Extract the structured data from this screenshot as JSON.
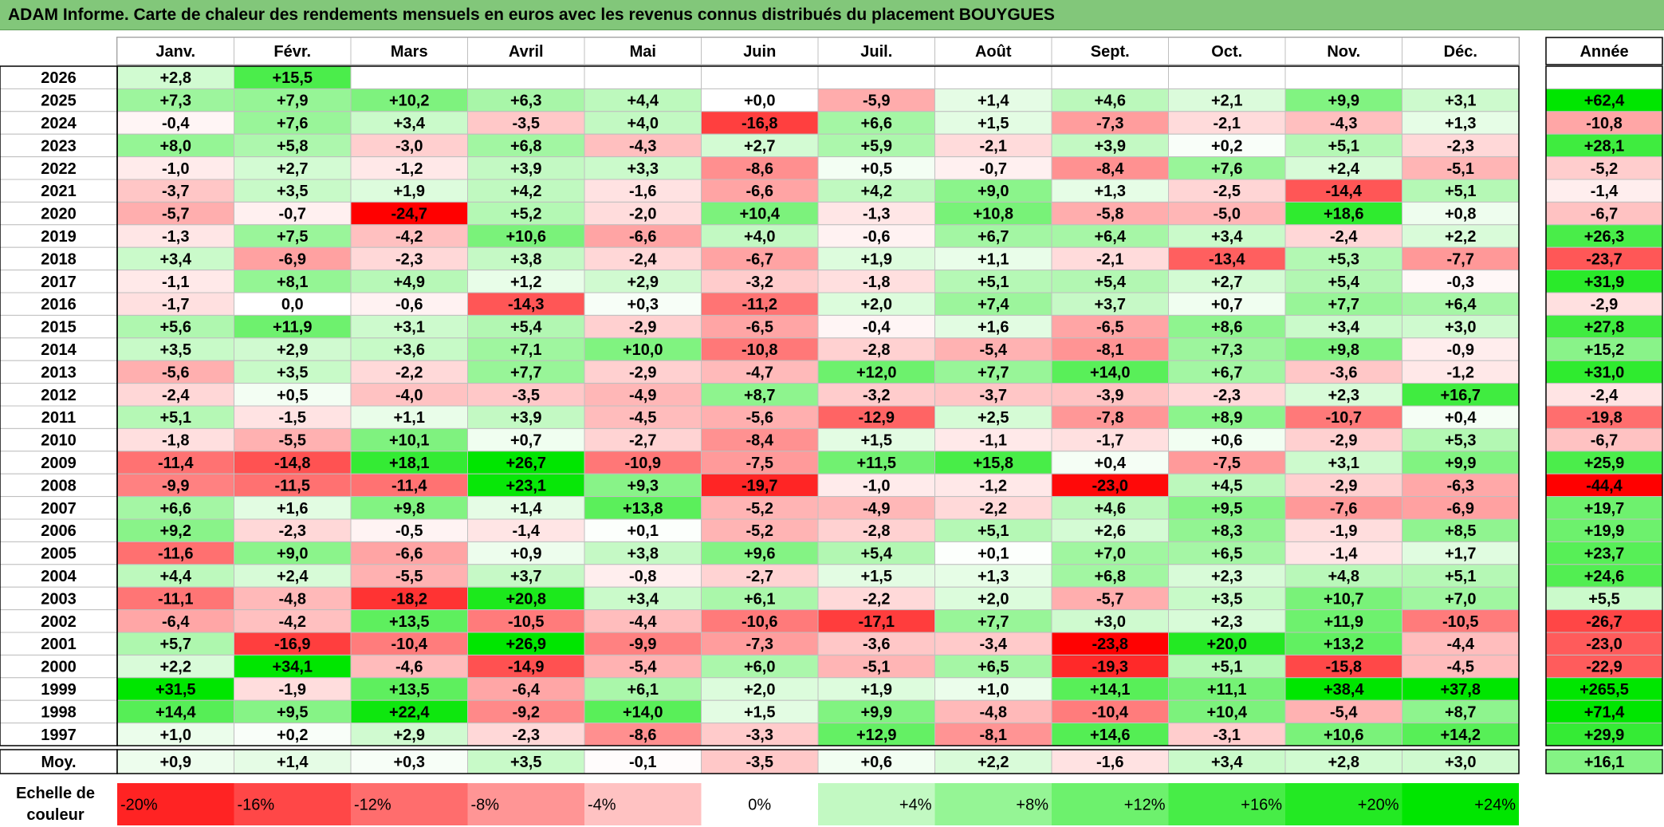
{
  "title": "ADAM Informe. Carte de chaleur des rendements mensuels en euros avec les revenus connus distribués du placement BOUYGUES",
  "chart_data": {
    "type": "heatmap",
    "months": [
      "Janv.",
      "Févr.",
      "Mars",
      "Avril",
      "Mai",
      "Juin",
      "Juil.",
      "Août",
      "Sept.",
      "Oct.",
      "Nov.",
      "Déc."
    ],
    "year_column_label": "Année",
    "rows": [
      {
        "year": "2026",
        "values": [
          "+2,8",
          "+15,5",
          "",
          "",
          "",
          "",
          "",
          "",
          "",
          "",
          "",
          ""
        ],
        "annual": ""
      },
      {
        "year": "2025",
        "values": [
          "+7,3",
          "+7,9",
          "+10,2",
          "+6,3",
          "+4,4",
          "+0,0",
          "-5,9",
          "+1,4",
          "+4,6",
          "+2,1",
          "+9,9",
          "+3,1"
        ],
        "annual": "+62,4"
      },
      {
        "year": "2024",
        "values": [
          "-0,4",
          "+7,6",
          "+3,4",
          "-3,5",
          "+4,0",
          "-16,8",
          "+6,6",
          "+1,5",
          "-7,3",
          "-2,1",
          "-4,3",
          "+1,3"
        ],
        "annual": "-10,8"
      },
      {
        "year": "2023",
        "values": [
          "+8,0",
          "+5,8",
          "-3,0",
          "+6,8",
          "-4,3",
          "+2,7",
          "+5,9",
          "-2,1",
          "+3,9",
          "+0,2",
          "+5,1",
          "-2,3"
        ],
        "annual": "+28,1"
      },
      {
        "year": "2022",
        "values": [
          "-1,0",
          "+2,7",
          "-1,2",
          "+3,9",
          "+3,3",
          "-8,6",
          "+0,5",
          "-0,7",
          "-8,4",
          "+7,6",
          "+2,4",
          "-5,1"
        ],
        "annual": "-5,2"
      },
      {
        "year": "2021",
        "values": [
          "-3,7",
          "+3,5",
          "+1,9",
          "+4,2",
          "-1,6",
          "-6,6",
          "+4,2",
          "+9,0",
          "+1,3",
          "-2,5",
          "-14,4",
          "+5,1"
        ],
        "annual": "-1,4"
      },
      {
        "year": "2020",
        "values": [
          "-5,7",
          "-0,7",
          "-24,7",
          "+5,2",
          "-2,0",
          "+10,4",
          "-1,3",
          "+10,8",
          "-5,8",
          "-5,0",
          "+18,6",
          "+0,8"
        ],
        "annual": "-6,7"
      },
      {
        "year": "2019",
        "values": [
          "-1,3",
          "+7,5",
          "-4,2",
          "+10,6",
          "-6,6",
          "+4,0",
          "-0,6",
          "+6,7",
          "+6,4",
          "+3,4",
          "-2,4",
          "+2,2"
        ],
        "annual": "+26,3"
      },
      {
        "year": "2018",
        "values": [
          "+3,4",
          "-6,9",
          "-2,3",
          "+3,8",
          "-2,4",
          "-6,7",
          "+1,9",
          "+1,1",
          "-2,1",
          "-13,4",
          "+5,3",
          "-7,7"
        ],
        "annual": "-23,7"
      },
      {
        "year": "2017",
        "values": [
          "-1,1",
          "+8,1",
          "+4,9",
          "+1,2",
          "+2,9",
          "-3,2",
          "-1,8",
          "+5,1",
          "+5,4",
          "+2,7",
          "+5,4",
          "-0,3"
        ],
        "annual": "+31,9"
      },
      {
        "year": "2016",
        "values": [
          "-1,7",
          "0,0",
          "-0,6",
          "-14,3",
          "+0,3",
          "-11,2",
          "+2,0",
          "+7,4",
          "+3,7",
          "+0,7",
          "+7,7",
          "+6,4"
        ],
        "annual": "-2,9"
      },
      {
        "year": "2015",
        "values": [
          "+5,6",
          "+11,9",
          "+3,1",
          "+5,4",
          "-2,9",
          "-6,5",
          "-0,4",
          "+1,6",
          "-6,5",
          "+8,6",
          "+3,4",
          "+3,0"
        ],
        "annual": "+27,8"
      },
      {
        "year": "2014",
        "values": [
          "+3,5",
          "+2,9",
          "+3,6",
          "+7,1",
          "+10,0",
          "-10,8",
          "-2,8",
          "-5,4",
          "-8,1",
          "+7,3",
          "+9,8",
          "-0,9"
        ],
        "annual": "+15,2"
      },
      {
        "year": "2013",
        "values": [
          "-5,6",
          "+3,5",
          "-2,2",
          "+7,7",
          "-2,9",
          "-4,7",
          "+12,0",
          "+7,7",
          "+14,0",
          "+6,7",
          "-3,6",
          "-1,2"
        ],
        "annual": "+31,0"
      },
      {
        "year": "2012",
        "values": [
          "-2,4",
          "+0,5",
          "-4,0",
          "-3,5",
          "-4,9",
          "+8,7",
          "-3,2",
          "-3,7",
          "-3,9",
          "-2,3",
          "+2,3",
          "+16,7"
        ],
        "annual": "-2,4"
      },
      {
        "year": "2011",
        "values": [
          "+5,1",
          "-1,5",
          "+1,1",
          "+3,9",
          "-4,5",
          "-5,6",
          "-12,9",
          "+2,5",
          "-7,8",
          "+8,9",
          "-10,7",
          "+0,4"
        ],
        "annual": "-19,8"
      },
      {
        "year": "2010",
        "values": [
          "-1,8",
          "-5,5",
          "+10,1",
          "+0,7",
          "-2,7",
          "-8,4",
          "+1,5",
          "-1,1",
          "-1,7",
          "+0,6",
          "-2,9",
          "+5,3"
        ],
        "annual": "-6,7"
      },
      {
        "year": "2009",
        "values": [
          "-11,4",
          "-14,8",
          "+18,1",
          "+26,7",
          "-10,9",
          "-7,5",
          "+11,5",
          "+15,8",
          "+0,4",
          "-7,5",
          "+3,1",
          "+9,9"
        ],
        "annual": "+25,9"
      },
      {
        "year": "2008",
        "values": [
          "-9,9",
          "-11,5",
          "-11,4",
          "+23,1",
          "+9,3",
          "-19,7",
          "-1,0",
          "-1,2",
          "-23,0",
          "+4,5",
          "-2,9",
          "-6,3"
        ],
        "annual": "-44,4"
      },
      {
        "year": "2007",
        "values": [
          "+6,6",
          "+1,6",
          "+9,8",
          "+1,4",
          "+13,8",
          "-5,2",
          "-4,9",
          "-2,2",
          "+4,6",
          "+9,5",
          "-7,6",
          "-6,9"
        ],
        "annual": "+19,7"
      },
      {
        "year": "2006",
        "values": [
          "+9,2",
          "-2,3",
          "-0,5",
          "-1,4",
          "+0,1",
          "-5,2",
          "-2,8",
          "+5,1",
          "+2,6",
          "+8,3",
          "-1,9",
          "+8,5"
        ],
        "annual": "+19,9"
      },
      {
        "year": "2005",
        "values": [
          "-11,6",
          "+9,0",
          "-6,6",
          "+0,9",
          "+3,8",
          "+9,6",
          "+5,4",
          "+0,1",
          "+7,0",
          "+6,5",
          "-1,4",
          "+1,7"
        ],
        "annual": "+23,7"
      },
      {
        "year": "2004",
        "values": [
          "+4,4",
          "+2,4",
          "-5,5",
          "+3,7",
          "-0,8",
          "-2,7",
          "+1,5",
          "+1,3",
          "+6,8",
          "+2,3",
          "+4,8",
          "+5,1"
        ],
        "annual": "+24,6"
      },
      {
        "year": "2003",
        "values": [
          "-11,1",
          "-4,8",
          "-18,2",
          "+20,8",
          "+3,4",
          "+6,1",
          "-2,2",
          "+2,0",
          "-5,7",
          "+3,5",
          "+10,7",
          "+7,0"
        ],
        "annual": "+5,5"
      },
      {
        "year": "2002",
        "values": [
          "-6,4",
          "-4,2",
          "+13,5",
          "-10,5",
          "-4,4",
          "-10,6",
          "-17,1",
          "+7,7",
          "+3,0",
          "+2,3",
          "+11,9",
          "-10,5"
        ],
        "annual": "-26,7"
      },
      {
        "year": "2001",
        "values": [
          "+5,7",
          "-16,9",
          "-10,4",
          "+26,9",
          "-9,9",
          "-7,3",
          "-3,6",
          "-3,4",
          "-23,8",
          "+20,0",
          "+13,2",
          "-4,4"
        ],
        "annual": "-23,0"
      },
      {
        "year": "2000",
        "values": [
          "+2,2",
          "+34,1",
          "-4,6",
          "-14,9",
          "-5,4",
          "+6,0",
          "-5,1",
          "+6,5",
          "-19,3",
          "+5,1",
          "-15,8",
          "-4,5"
        ],
        "annual": "-22,9"
      },
      {
        "year": "1999",
        "values": [
          "+31,5",
          "-1,9",
          "+13,5",
          "-6,4",
          "+6,1",
          "+2,0",
          "+1,9",
          "+1,0",
          "+14,1",
          "+11,1",
          "+38,4",
          "+37,8"
        ],
        "annual": "+265,5"
      },
      {
        "year": "1998",
        "values": [
          "+14,4",
          "+9,5",
          "+22,4",
          "-9,2",
          "+14,0",
          "+1,5",
          "+9,9",
          "-4,8",
          "-10,4",
          "+10,4",
          "-5,4",
          "+8,7"
        ],
        "annual": "+71,4"
      },
      {
        "year": "1997",
        "values": [
          "+1,0",
          "+0,2",
          "+2,9",
          "-2,3",
          "-8,6",
          "-3,3",
          "+12,9",
          "-8,1",
          "+14,6",
          "-3,1",
          "+10,6",
          "+14,2"
        ],
        "annual": "+29,9"
      }
    ],
    "average_row": {
      "label": "Moy.",
      "values": [
        "+0,9",
        "+1,4",
        "+0,3",
        "+3,5",
        "-0,1",
        "-3,5",
        "+0,6",
        "+2,2",
        "-1,6",
        "+3,4",
        "+2,8",
        "+3,0"
      ],
      "annual": "+16,1"
    },
    "scale": {
      "label_line1": "Echelle de",
      "label_line2": "couleur",
      "steps": [
        "-20%",
        "-16%",
        "-12%",
        "-8%",
        "-4%",
        "0%",
        "+4%",
        "+8%",
        "+12%",
        "+16%",
        "+20%",
        "+24%"
      ]
    },
    "colors": {
      "title_bg": "#82c77a",
      "negative_max": "#ff0000",
      "positive_max": "#00e600",
      "neutral": "#ffffff",
      "grid": "#bfbfbf"
    }
  }
}
